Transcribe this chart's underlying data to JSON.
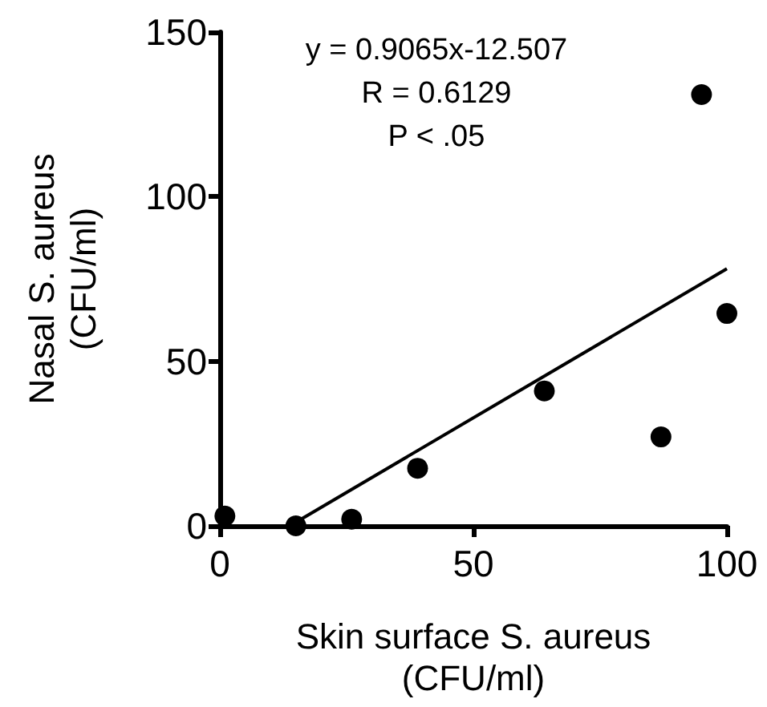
{
  "chart_data": {
    "type": "scatter",
    "xlabel": "Skin surface S. aureus\n(CFU/ml)",
    "ylabel": "Nasal S. aureus\n(CFU/ml)",
    "annotations": [
      "y = 0.9065x-12.507",
      "R = 0.6129",
      "P < .05"
    ],
    "series": [
      {
        "marker": "circle",
        "color": "#000000",
        "x": [
          1,
          15,
          26,
          39,
          64,
          87,
          95,
          100
        ],
        "values": [
          3,
          0,
          2,
          17.5,
          41,
          27,
          131,
          64.5
        ]
      },
      {
        "type": "line",
        "marker": "none",
        "color": "#000000",
        "x": [
          14,
          100
        ],
        "values": [
          0.2,
          78.1
        ]
      }
    ],
    "xlim": [
      0,
      100
    ],
    "xticks": [
      0,
      50,
      100
    ],
    "ylim": [
      0,
      150
    ],
    "yticks": [
      0,
      50,
      100,
      150
    ],
    "grid": false
  }
}
